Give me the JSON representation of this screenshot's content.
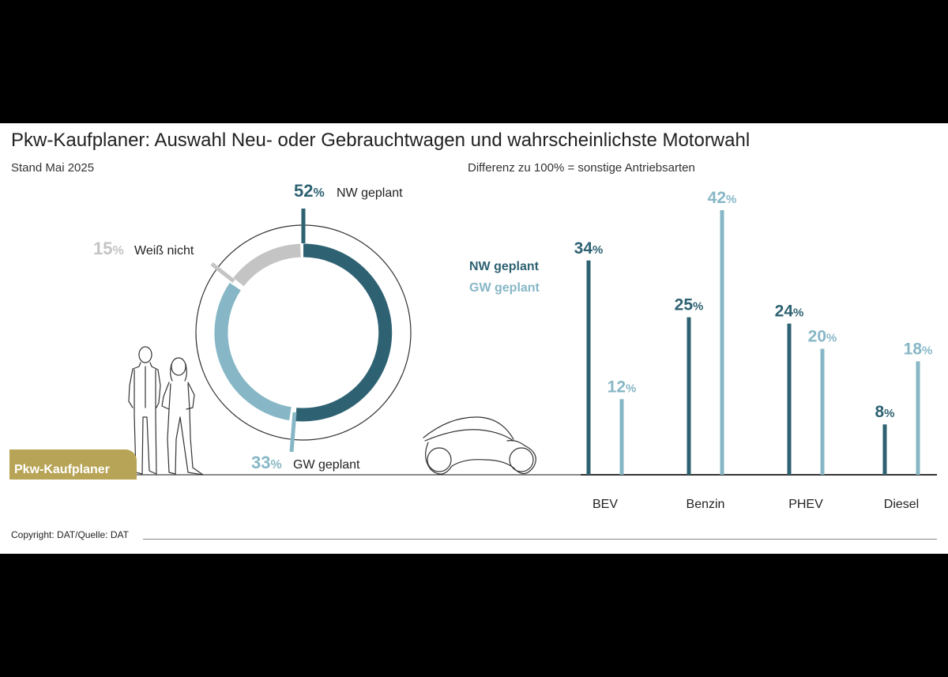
{
  "header": {
    "title": "Pkw-Kaufplaner: Auswahl Neu- oder Gebrauchtwagen und wahrscheinlichste Motorwahl",
    "subtitle_left": "Stand Mai 2025",
    "subtitle_right": "Differenz zu 100% = sonstige Antriebsarten"
  },
  "badge": "Pkw-Kaufplaner",
  "footer": {
    "copyright": "Copyright: DAT/Quelle: DAT"
  },
  "colors": {
    "nw": "#2e6272",
    "gw": "#87b7c6",
    "unknown": "#c4c4c4",
    "badge": "#b8a456"
  },
  "chart_data": [
    {
      "type": "pie",
      "variant": "donut",
      "slices": [
        {
          "label": "NW geplant",
          "value": 52
        },
        {
          "label": "GW geplant",
          "value": 33
        },
        {
          "label": "Weiß nicht",
          "value": 15
        }
      ]
    },
    {
      "type": "bar",
      "categories": [
        "BEV",
        "Benzin",
        "PHEV",
        "Diesel"
      ],
      "series": [
        {
          "name": "NW geplant",
          "values": [
            34,
            25,
            24,
            8
          ]
        },
        {
          "name": "GW geplant",
          "values": [
            12,
            42,
            20,
            18
          ]
        }
      ],
      "unit": "%",
      "legend": "top-left"
    }
  ]
}
